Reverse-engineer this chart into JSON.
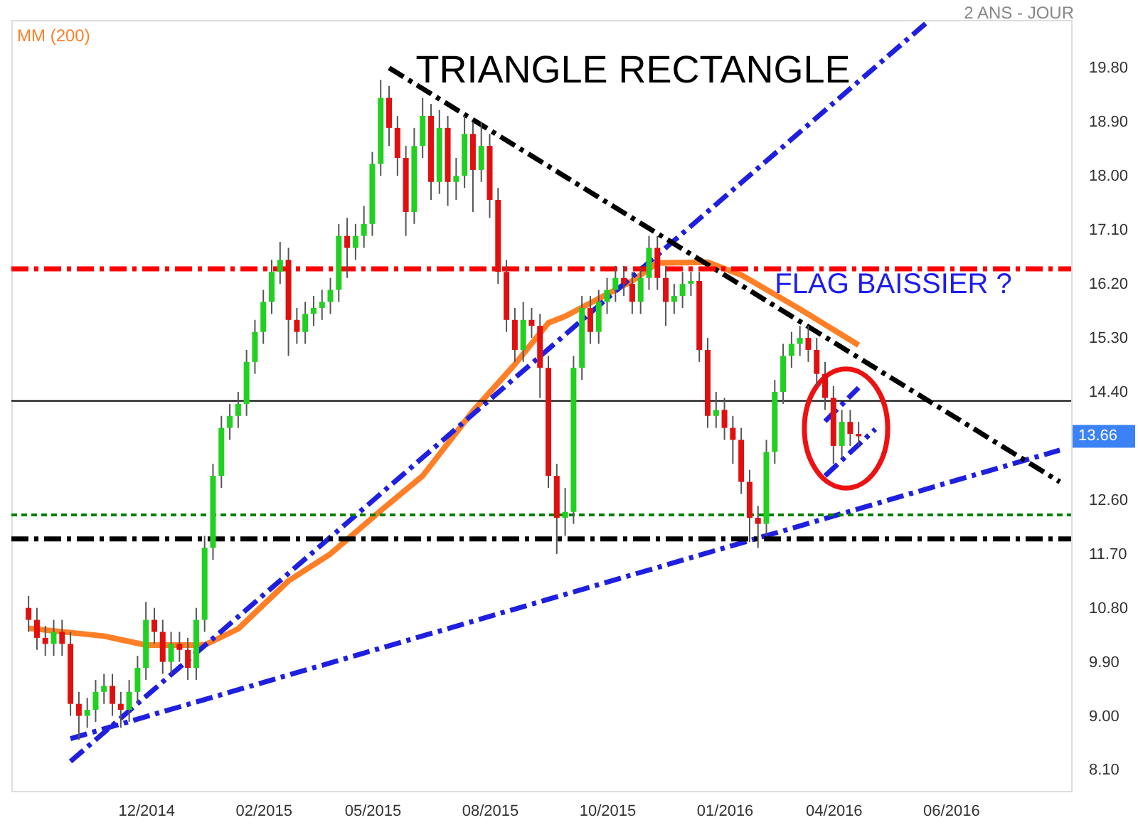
{
  "chart_data": {
    "type": "candlestick",
    "categories": [
      null,
      null,
      null,
      null,
      null,
      null,
      null,
      null,
      null,
      null,
      null,
      null,
      null,
      null,
      "12/2014",
      null,
      null,
      null,
      null,
      null,
      null,
      null,
      null,
      null,
      null,
      null,
      null,
      null,
      "02/2015",
      null,
      null,
      null,
      null,
      null,
      null,
      null,
      null,
      null,
      null,
      null,
      null,
      "05/2015",
      null,
      null,
      null,
      null,
      null,
      null,
      null,
      null,
      null,
      null,
      null,
      null,
      null,
      "08/2015",
      null,
      null,
      null,
      null,
      null,
      null,
      null,
      null,
      null,
      null,
      null,
      null,
      null,
      "10/2015",
      null,
      null,
      null,
      null,
      null,
      null,
      null,
      null,
      null,
      null,
      null,
      null,
      null,
      "01/2016",
      null,
      null,
      null,
      null,
      null,
      null,
      null,
      null,
      null,
      null,
      null,
      null,
      "04/2016",
      null,
      null,
      null,
      null,
      null,
      null,
      null,
      null,
      null,
      null,
      null,
      null,
      null,
      "06/2016",
      null,
      null,
      null,
      null,
      null,
      null,
      null,
      null,
      null,
      null,
      null,
      null,
      null
    ],
    "ohlc": [
      [
        10.8,
        11.0,
        10.4,
        10.6
      ],
      [
        10.6,
        10.8,
        10.1,
        10.3
      ],
      [
        10.3,
        10.5,
        10.0,
        10.2
      ],
      [
        10.2,
        10.6,
        10.0,
        10.4
      ],
      [
        10.4,
        10.6,
        10.0,
        10.2
      ],
      [
        10.2,
        10.4,
        9.0,
        9.2
      ],
      [
        9.2,
        9.4,
        8.6,
        9.0
      ],
      [
        9.0,
        9.3,
        8.8,
        9.1
      ],
      [
        9.1,
        9.6,
        8.9,
        9.4
      ],
      [
        9.4,
        9.7,
        9.2,
        9.5
      ],
      [
        9.5,
        9.7,
        9.0,
        9.2
      ],
      [
        9.2,
        9.4,
        8.8,
        9.1
      ],
      [
        9.1,
        9.6,
        8.9,
        9.4
      ],
      [
        9.4,
        10.0,
        9.2,
        9.8
      ],
      [
        9.8,
        10.9,
        9.6,
        10.6
      ],
      [
        10.6,
        10.8,
        10.2,
        10.4
      ],
      [
        10.4,
        10.6,
        9.7,
        9.9
      ],
      [
        9.9,
        10.4,
        9.7,
        10.2
      ],
      [
        10.2,
        10.4,
        9.9,
        10.1
      ],
      [
        10.1,
        10.3,
        9.6,
        9.8
      ],
      [
        9.8,
        10.8,
        9.6,
        10.6
      ],
      [
        10.6,
        12.0,
        10.4,
        11.8
      ],
      [
        11.8,
        13.2,
        11.6,
        13.0
      ],
      [
        13.0,
        14.0,
        12.8,
        13.8
      ],
      [
        13.8,
        14.2,
        13.6,
        14.0
      ],
      [
        14.0,
        14.4,
        13.8,
        14.2
      ],
      [
        14.2,
        15.1,
        14.0,
        14.9
      ],
      [
        14.9,
        15.6,
        14.7,
        15.4
      ],
      [
        15.4,
        16.1,
        15.2,
        15.9
      ],
      [
        15.9,
        16.6,
        15.7,
        16.4
      ],
      [
        16.4,
        16.9,
        16.2,
        16.6
      ],
      [
        16.6,
        16.8,
        15.0,
        15.6
      ],
      [
        15.6,
        15.8,
        15.2,
        15.4
      ],
      [
        15.4,
        15.9,
        15.2,
        15.7
      ],
      [
        15.7,
        16.0,
        15.5,
        15.8
      ],
      [
        15.8,
        16.1,
        15.6,
        15.9
      ],
      [
        15.9,
        16.3,
        15.7,
        16.1
      ],
      [
        16.1,
        17.2,
        15.9,
        17.0
      ],
      [
        17.0,
        17.3,
        16.3,
        16.8
      ],
      [
        16.8,
        17.2,
        16.6,
        17.0
      ],
      [
        17.0,
        17.5,
        16.8,
        17.2
      ],
      [
        17.2,
        18.4,
        17.0,
        18.2
      ],
      [
        18.2,
        19.6,
        18.0,
        19.3
      ],
      [
        19.3,
        19.5,
        18.5,
        18.8
      ],
      [
        18.8,
        19.0,
        18.0,
        18.3
      ],
      [
        18.3,
        18.5,
        17.0,
        17.4
      ],
      [
        17.4,
        18.8,
        17.2,
        18.5
      ],
      [
        18.5,
        19.3,
        18.3,
        19.0
      ],
      [
        19.0,
        19.2,
        17.6,
        17.9
      ],
      [
        17.9,
        19.1,
        17.7,
        18.8
      ],
      [
        18.8,
        19.0,
        17.5,
        17.9
      ],
      [
        17.9,
        18.3,
        17.6,
        18.0
      ],
      [
        18.0,
        19.0,
        17.8,
        18.7
      ],
      [
        18.7,
        18.9,
        17.4,
        18.1
      ],
      [
        18.1,
        18.9,
        17.9,
        18.5
      ],
      [
        18.5,
        18.7,
        17.3,
        17.6
      ],
      [
        17.6,
        17.8,
        16.2,
        16.4
      ],
      [
        16.4,
        16.6,
        15.4,
        15.6
      ],
      [
        15.6,
        15.8,
        14.9,
        15.1
      ],
      [
        15.1,
        15.9,
        14.9,
        15.6
      ],
      [
        15.6,
        15.8,
        15.3,
        15.5
      ],
      [
        15.5,
        15.7,
        14.3,
        14.8
      ],
      [
        14.8,
        15.0,
        12.8,
        13.0
      ],
      [
        13.0,
        13.2,
        11.7,
        12.3
      ],
      [
        12.3,
        12.8,
        12.0,
        12.4
      ],
      [
        12.4,
        15.0,
        12.2,
        14.8
      ],
      [
        14.8,
        16.0,
        14.6,
        15.8
      ],
      [
        15.8,
        16.0,
        15.2,
        15.4
      ],
      [
        15.4,
        16.1,
        15.2,
        15.9
      ],
      [
        15.9,
        16.3,
        15.7,
        16.1
      ],
      [
        16.1,
        16.5,
        15.9,
        16.3
      ],
      [
        16.3,
        16.5,
        16.0,
        16.2
      ],
      [
        16.2,
        16.4,
        15.7,
        15.9
      ],
      [
        15.9,
        16.5,
        15.7,
        16.3
      ],
      [
        16.3,
        17.0,
        16.1,
        16.8
      ],
      [
        16.8,
        17.0,
        16.1,
        16.3
      ],
      [
        16.3,
        16.5,
        15.5,
        15.9
      ],
      [
        15.9,
        16.2,
        15.7,
        16.0
      ],
      [
        16.0,
        16.4,
        15.8,
        16.2
      ],
      [
        16.2,
        16.4,
        16.0,
        16.25
      ],
      [
        16.25,
        16.4,
        14.9,
        15.1
      ],
      [
        15.1,
        15.3,
        13.8,
        14.0
      ],
      [
        14.0,
        14.4,
        13.8,
        14.1
      ],
      [
        14.1,
        14.3,
        13.6,
        13.8
      ],
      [
        13.8,
        14.0,
        13.2,
        13.6
      ],
      [
        13.6,
        13.8,
        12.7,
        12.9
      ],
      [
        12.9,
        13.1,
        11.9,
        12.3
      ],
      [
        12.3,
        12.5,
        11.8,
        12.2
      ],
      [
        12.2,
        13.6,
        12.0,
        13.4
      ],
      [
        13.4,
        14.6,
        13.2,
        14.4
      ],
      [
        14.4,
        15.2,
        14.2,
        15.0
      ],
      [
        15.0,
        15.4,
        14.8,
        15.2
      ],
      [
        15.2,
        15.5,
        15.0,
        15.3
      ],
      [
        15.3,
        15.5,
        14.9,
        15.1
      ],
      [
        15.1,
        15.3,
        14.5,
        14.7
      ],
      [
        14.7,
        14.9,
        14.1,
        14.3
      ],
      [
        14.3,
        14.5,
        13.2,
        13.5
      ],
      [
        13.5,
        14.1,
        13.3,
        13.9
      ],
      [
        13.9,
        14.1,
        13.5,
        13.7
      ],
      [
        13.7,
        13.9,
        13.5,
        13.66
      ],
      null,
      null,
      null,
      null,
      null,
      null,
      null,
      null,
      null,
      null,
      null,
      null,
      null,
      null,
      null,
      null,
      null,
      null,
      null,
      null,
      null,
      null,
      null,
      null
    ],
    "series": [
      {
        "name": "MM (200)",
        "type": "line",
        "color": "#ff7f27",
        "line_style": "solid",
        "values": [
          10.46,
          null,
          null,
          null,
          null,
          null,
          null,
          null,
          null,
          10.33,
          null,
          null,
          null,
          null,
          10.18,
          null,
          null,
          null,
          null,
          null,
          null,
          10.18,
          null,
          null,
          null,
          10.45,
          null,
          null,
          null,
          null,
          null,
          11.25,
          null,
          null,
          null,
          null,
          11.7,
          null,
          null,
          null,
          null,
          null,
          12.42,
          null,
          null,
          null,
          null,
          13.0,
          null,
          null,
          null,
          null,
          null,
          14.08,
          null,
          null,
          null,
          null,
          14.86,
          null,
          null,
          null,
          15.55,
          null,
          15.66,
          null,
          null,
          null,
          null,
          null,
          null,
          null,
          16.25,
          null,
          null,
          16.55,
          null,
          null,
          null,
          null,
          null,
          16.56,
          null,
          null,
          null,
          16.35,
          null,
          null,
          null,
          null,
          null,
          null,
          15.78,
          null,
          null,
          null,
          null,
          null,
          null,
          15.18,
          null,
          null,
          null,
          null,
          null,
          null,
          null,
          null,
          null,
          null,
          null,
          null,
          null,
          null,
          null,
          null,
          null,
          null,
          null,
          null,
          null,
          null,
          null,
          null
        ]
      },
      {
        "type": "line",
        "color": "#1f1fe0",
        "line_style": "dashed",
        "values": [
          null,
          null,
          null,
          null,
          null,
          8.24,
          null,
          null,
          null,
          null,
          null,
          null,
          null,
          null,
          null,
          null,
          null,
          null,
          null,
          null,
          null,
          null,
          null,
          null,
          null,
          null,
          null,
          null,
          null,
          null,
          null,
          null,
          null,
          null,
          null,
          null,
          null,
          null,
          null,
          null,
          null,
          null,
          null,
          null,
          null,
          null,
          null,
          null,
          null,
          null,
          null,
          null,
          null,
          null,
          null,
          null,
          null,
          null,
          null,
          null,
          null,
          null,
          null,
          null,
          null,
          null,
          null,
          null,
          null,
          null,
          null,
          null,
          null,
          null,
          null,
          null,
          null,
          null,
          null,
          null,
          null,
          null,
          null,
          null,
          null,
          null,
          null,
          null,
          null,
          null,
          null,
          null,
          null,
          null,
          null,
          null,
          null,
          null,
          null,
          null,
          null,
          null,
          null,
          null,
          null,
          null,
          null,
          20.54,
          null,
          null,
          null,
          null,
          null,
          null,
          null,
          null,
          null,
          null,
          null,
          null,
          null,
          null,
          null,
          null
        ]
      },
      {
        "type": "line",
        "color": "#1f1fe0",
        "line_style": "dashed",
        "values": [
          null,
          null,
          null,
          null,
          null,
          8.62,
          null,
          null,
          null,
          null,
          null,
          null,
          null,
          null,
          null,
          null,
          null,
          null,
          null,
          null,
          null,
          null,
          null,
          null,
          null,
          null,
          null,
          null,
          null,
          null,
          null,
          null,
          null,
          null,
          null,
          null,
          null,
          null,
          null,
          null,
          null,
          null,
          null,
          null,
          null,
          null,
          null,
          null,
          null,
          null,
          null,
          null,
          null,
          null,
          null,
          null,
          null,
          null,
          null,
          null,
          null,
          null,
          null,
          null,
          null,
          null,
          null,
          null,
          null,
          null,
          null,
          null,
          null,
          null,
          null,
          null,
          null,
          null,
          null,
          null,
          null,
          null,
          null,
          null,
          null,
          null,
          null,
          null,
          null,
          null,
          null,
          null,
          null,
          null,
          null,
          null,
          null,
          null,
          null,
          null,
          null,
          null,
          null,
          null,
          null,
          null,
          null,
          null,
          null,
          null,
          null,
          null,
          null,
          null,
          null,
          null,
          null,
          null,
          null,
          null,
          null,
          null,
          null,
          13.43
        ]
      },
      {
        "type": "line",
        "color": "#000000",
        "line_style": "dashed",
        "values": [
          null,
          null,
          null,
          null,
          null,
          null,
          null,
          null,
          null,
          null,
          null,
          null,
          null,
          null,
          null,
          null,
          null,
          null,
          null,
          null,
          null,
          null,
          null,
          null,
          null,
          null,
          null,
          null,
          null,
          null,
          null,
          null,
          null,
          null,
          null,
          null,
          null,
          null,
          null,
          null,
          null,
          null,
          null,
          19.8,
          null,
          null,
          null,
          null,
          null,
          null,
          null,
          null,
          null,
          null,
          null,
          null,
          null,
          null,
          null,
          null,
          null,
          null,
          null,
          null,
          null,
          null,
          null,
          null,
          null,
          null,
          null,
          null,
          null,
          null,
          null,
          null,
          null,
          null,
          null,
          null,
          null,
          null,
          null,
          null,
          null,
          null,
          null,
          null,
          null,
          null,
          null,
          null,
          null,
          null,
          null,
          null,
          null,
          null,
          null,
          null,
          null,
          null,
          null,
          null,
          null,
          null,
          null,
          null,
          null,
          null,
          null,
          null,
          null,
          null,
          null,
          null,
          null,
          null,
          null,
          null,
          null,
          null,
          null,
          12.9
        ]
      },
      {
        "type": "line",
        "color": "#1f1fe0",
        "line_style": "dashed",
        "values": [
          null,
          null,
          null,
          null,
          null,
          null,
          null,
          null,
          null,
          null,
          null,
          null,
          null,
          null,
          null,
          null,
          null,
          null,
          null,
          null,
          null,
          null,
          null,
          null,
          null,
          null,
          null,
          null,
          null,
          null,
          null,
          null,
          null,
          null,
          null,
          null,
          null,
          null,
          null,
          null,
          null,
          null,
          null,
          null,
          null,
          null,
          null,
          null,
          null,
          null,
          null,
          null,
          null,
          null,
          null,
          null,
          null,
          null,
          null,
          null,
          null,
          null,
          null,
          null,
          null,
          null,
          null,
          null,
          null,
          null,
          null,
          null,
          null,
          null,
          null,
          null,
          null,
          null,
          null,
          null,
          null,
          null,
          null,
          null,
          null,
          null,
          null,
          null,
          null,
          null,
          null,
          null,
          null,
          null,
          null,
          13.91,
          null,
          null,
          null,
          14.47,
          null,
          null,
          null,
          null,
          null,
          null,
          null,
          null,
          null,
          null,
          null,
          null,
          null,
          null,
          null,
          null,
          null,
          null,
          null,
          null,
          null,
          null,
          null,
          null
        ]
      },
      {
        "type": "line",
        "color": "#1f1fe0",
        "line_style": "dashed",
        "values": [
          null,
          null,
          null,
          null,
          null,
          null,
          null,
          null,
          null,
          null,
          null,
          null,
          null,
          null,
          null,
          null,
          null,
          null,
          null,
          null,
          null,
          null,
          null,
          null,
          null,
          null,
          null,
          null,
          null,
          null,
          null,
          null,
          null,
          null,
          null,
          null,
          null,
          null,
          null,
          null,
          null,
          null,
          null,
          null,
          null,
          null,
          null,
          null,
          null,
          null,
          null,
          null,
          null,
          null,
          null,
          null,
          null,
          null,
          null,
          null,
          null,
          null,
          null,
          null,
          null,
          null,
          null,
          null,
          null,
          null,
          null,
          null,
          null,
          null,
          null,
          null,
          null,
          null,
          null,
          null,
          null,
          null,
          null,
          null,
          null,
          null,
          null,
          null,
          null,
          null,
          null,
          null,
          null,
          null,
          null,
          13.0,
          null,
          null,
          null,
          null,
          null,
          13.78,
          null,
          null,
          null,
          null,
          null,
          null,
          null,
          null,
          null,
          null,
          null,
          null,
          null,
          null,
          null,
          null,
          null,
          null,
          null,
          null,
          null,
          null
        ]
      }
    ],
    "ref_lines": [
      {
        "axis": "y",
        "value": 16.45,
        "color": "#ff0000",
        "line_style": "dashed"
      },
      {
        "axis": "y",
        "value": 14.25,
        "color": "#000000",
        "line_style": "solid"
      },
      {
        "axis": "y",
        "value": 12.35,
        "color": "#008000",
        "line_style": "dotted"
      },
      {
        "axis": "y",
        "value": 11.95,
        "color": "#000000",
        "line_style": "dashed"
      }
    ],
    "annotations": [
      "2 ANS - JOUR",
      "TRIANGLE RECTANGLE",
      "FLAG BAISSIER ?",
      "13.66"
    ],
    "ylim": [
      7.75,
      20.6
    ],
    "yticks": [
      {
        "value": 8.1,
        "label": "8.10"
      },
      {
        "value": 9,
        "label": "9.00"
      },
      {
        "value": 9.9,
        "label": "9.90"
      },
      {
        "value": 10.8,
        "label": "10.80"
      },
      {
        "value": 11.7,
        "label": "11.70"
      },
      {
        "value": 12.6,
        "label": "12.60"
      },
      {
        "value": 14.4,
        "label": "14.40"
      },
      {
        "value": 15.3,
        "label": "15.30"
      },
      {
        "value": 16.2,
        "label": "16.20"
      },
      {
        "value": 17.1,
        "label": "17.10"
      },
      {
        "value": 18,
        "label": "18.00"
      },
      {
        "value": 18.9,
        "label": "18.90"
      },
      {
        "value": 19.8,
        "label": "19.80"
      }
    ],
    "legend": "top left",
    "grid": false
  }
}
